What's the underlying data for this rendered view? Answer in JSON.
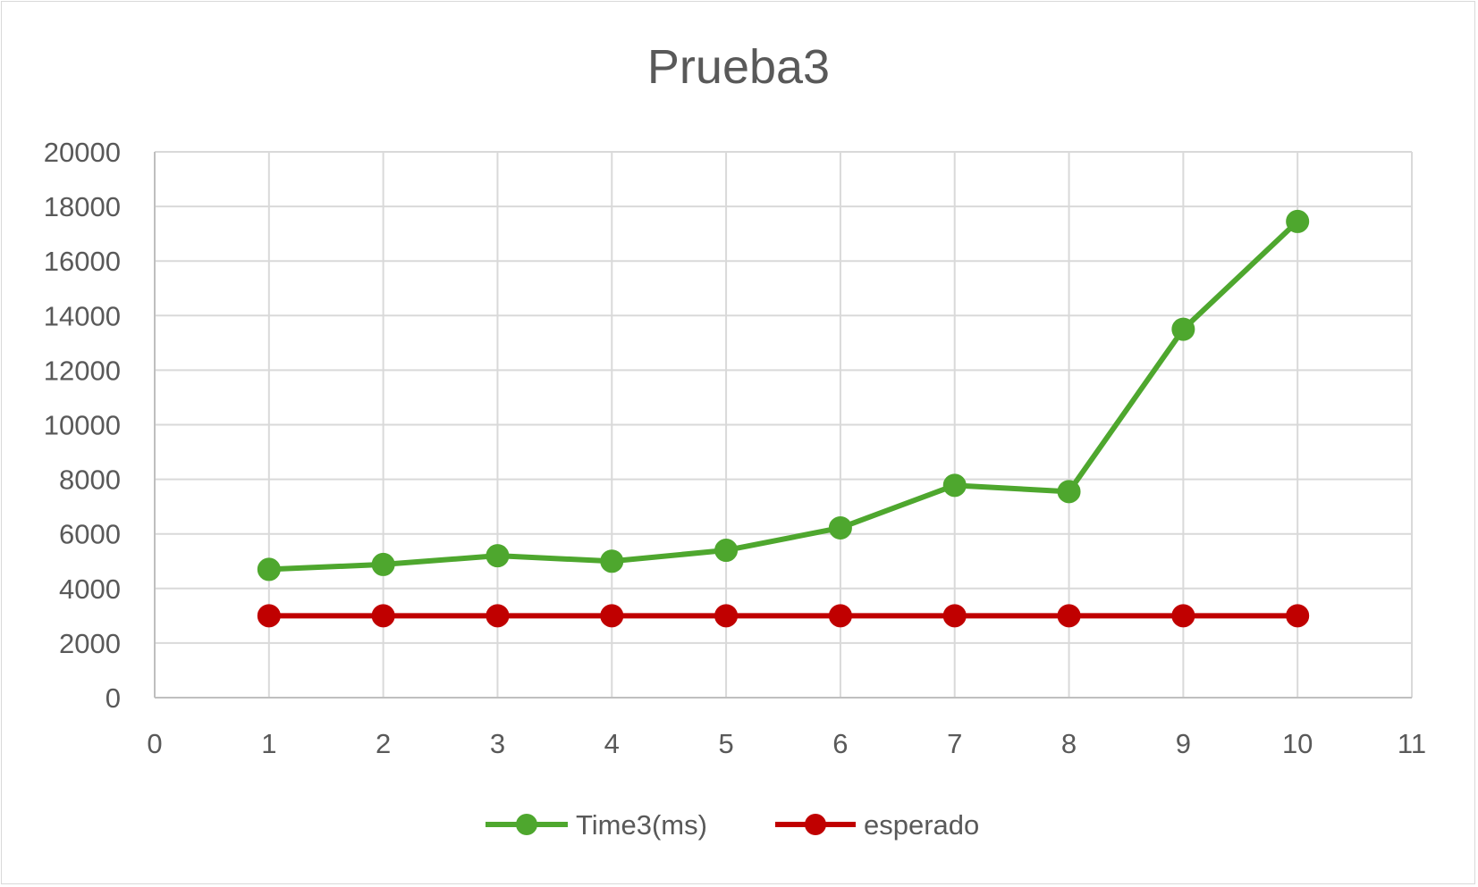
{
  "chart_data": {
    "type": "scatter",
    "title": "Prueba3",
    "xlabel": "",
    "ylabel": "",
    "xlim": [
      0,
      11
    ],
    "ylim": [
      0,
      20000
    ],
    "x_ticks": [
      0,
      1,
      2,
      3,
      4,
      5,
      6,
      7,
      8,
      9,
      10,
      11
    ],
    "y_ticks": [
      0,
      2000,
      4000,
      6000,
      8000,
      10000,
      12000,
      14000,
      16000,
      18000,
      20000
    ],
    "grid": true,
    "legend_position": "bottom",
    "series": [
      {
        "name": "Time3(ms)",
        "color": "#4ea72e",
        "marker": "circle",
        "line": "straight",
        "x": [
          1,
          2,
          3,
          4,
          5,
          6,
          7,
          8,
          9,
          10
        ],
        "y": [
          4700,
          4880,
          5200,
          5000,
          5400,
          6220,
          7780,
          7550,
          13500,
          17450
        ]
      },
      {
        "name": "esperado",
        "color": "#c00000",
        "marker": "circle",
        "line": "straight",
        "x": [
          1,
          2,
          3,
          4,
          5,
          6,
          7,
          8,
          9,
          10
        ],
        "y": [
          3000,
          3000,
          3000,
          3000,
          3000,
          3000,
          3000,
          3000,
          3000,
          3000
        ]
      }
    ]
  }
}
